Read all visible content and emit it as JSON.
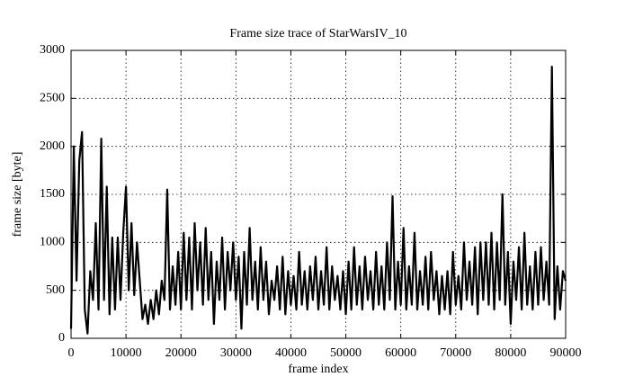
{
  "chart_data": {
    "type": "line",
    "title": "Frame size trace of StarWarsIV_10",
    "x_label": "frame index",
    "y_label": "frame size [byte]",
    "x": [
      0,
      500,
      1000,
      1500,
      2000,
      2500,
      3000,
      3500,
      4000,
      4500,
      5000,
      5500,
      6000,
      6500,
      7000,
      7500,
      8000,
      8500,
      9000,
      9500,
      10000,
      10500,
      11000,
      11500,
      12000,
      12500,
      13000,
      13500,
      14000,
      14500,
      15000,
      15500,
      16000,
      16500,
      17000,
      17500,
      18000,
      18500,
      19000,
      19500,
      20000,
      20500,
      21000,
      21500,
      22000,
      22500,
      23000,
      23500,
      24000,
      24500,
      25000,
      25500,
      26000,
      26500,
      27000,
      27500,
      28000,
      28500,
      29000,
      29500,
      30000,
      30500,
      31000,
      31500,
      32000,
      32500,
      33000,
      33500,
      34000,
      34500,
      35000,
      35500,
      36000,
      36500,
      37000,
      37500,
      38000,
      38500,
      39000,
      39500,
      40000,
      40500,
      41000,
      41500,
      42000,
      42500,
      43000,
      43500,
      44000,
      44500,
      45000,
      45500,
      46000,
      46500,
      47000,
      47500,
      48000,
      48500,
      49000,
      49500,
      50000,
      50500,
      51000,
      51500,
      52000,
      52500,
      53000,
      53500,
      54000,
      54500,
      55000,
      55500,
      56000,
      56500,
      57000,
      57500,
      58000,
      58500,
      59000,
      59500,
      60000,
      60500,
      61000,
      61500,
      62000,
      62500,
      63000,
      63500,
      64000,
      64500,
      65000,
      65500,
      66000,
      66500,
      67000,
      67500,
      68000,
      68500,
      69000,
      69500,
      70000,
      70500,
      71000,
      71500,
      72000,
      72500,
      73000,
      73500,
      74000,
      74500,
      75000,
      75500,
      76000,
      76500,
      77000,
      77500,
      78000,
      78500,
      79000,
      79500,
      80000,
      80500,
      81000,
      81500,
      82000,
      82500,
      83000,
      83500,
      84000,
      84500,
      85000,
      85500,
      86000,
      86500,
      87000,
      87500,
      88000,
      88500,
      89000,
      89500,
      90000
    ],
    "series": [
      {
        "color": "#000000",
        "values": [
          100,
          2000,
          600,
          1850,
          2150,
          300,
          50,
          700,
          400,
          1200,
          300,
          2080,
          400,
          1580,
          250,
          1050,
          300,
          1050,
          400,
          1100,
          1580,
          500,
          1200,
          450,
          1000,
          600,
          200,
          350,
          150,
          400,
          200,
          500,
          250,
          600,
          400,
          1550,
          300,
          750,
          350,
          900,
          300,
          1100,
          400,
          1050,
          300,
          1200,
          500,
          1000,
          350,
          1150,
          400,
          900,
          150,
          800,
          400,
          1050,
          300,
          900,
          500,
          1000,
          400,
          850,
          100,
          900,
          350,
          1150,
          400,
          800,
          300,
          950,
          400,
          800,
          250,
          600,
          400,
          750,
          300,
          850,
          250,
          700,
          350,
          650,
          300,
          900,
          350,
          700,
          300,
          750,
          400,
          850,
          300,
          700,
          350,
          950,
          300,
          750,
          400,
          650,
          300,
          700,
          250,
          800,
          300,
          950,
          350,
          750,
          300,
          850,
          400,
          700,
          300,
          900,
          350,
          750,
          300,
          1000,
          400,
          1480,
          300,
          800,
          350,
          1150,
          300,
          750,
          350,
          1100,
          300,
          700,
          350,
          850,
          300,
          900,
          400,
          700,
          250,
          650,
          300,
          700,
          250,
          900,
          350,
          650,
          300,
          1000,
          400,
          800,
          350,
          950,
          250,
          1000,
          400,
          1000,
          350,
          1100,
          300,
          1000,
          400,
          1500,
          350,
          900,
          150,
          800,
          400,
          950,
          300,
          1100,
          350,
          750,
          300,
          900,
          350,
          950,
          400,
          800,
          350,
          2830,
          200,
          750,
          300,
          700,
          600
        ]
      }
    ],
    "xlim": [
      0,
      90000
    ],
    "ylim": [
      0,
      3000
    ],
    "xticks": [
      0,
      10000,
      20000,
      30000,
      40000,
      50000,
      60000,
      70000,
      80000,
      90000
    ],
    "yticks": [
      0,
      500,
      1000,
      1500,
      2000,
      2500,
      3000
    ],
    "grid": true
  }
}
